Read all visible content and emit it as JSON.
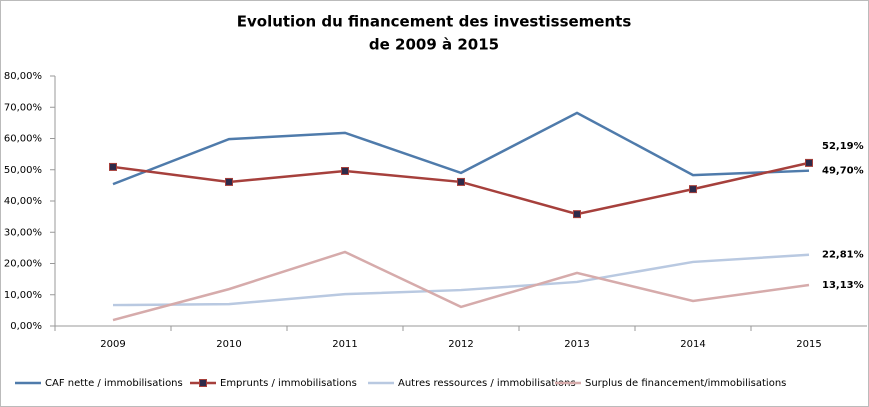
{
  "chart_data": {
    "type": "line",
    "title": [
      "Evolution du financement des investissements",
      "de 2009 à 2015"
    ],
    "categories": [
      "2009",
      "2010",
      "2011",
      "2012",
      "2013",
      "2014",
      "2015"
    ],
    "series": [
      {
        "name": "CAF nette / immobilisations",
        "color": "#4f7bab",
        "values": [
          45.4,
          59.8,
          61.8,
          49,
          68.2,
          48.3,
          49.7
        ],
        "value_labels": [
          null,
          null,
          null,
          null,
          null,
          null,
          "49,70%"
        ]
      },
      {
        "name": "Emprunts / immobilisations",
        "color": "#a6403c",
        "marker": "square",
        "values": [
          50.9,
          46.1,
          49.6,
          46.1,
          35.8,
          43.8,
          52.19
        ],
        "value_labels": [
          null,
          null,
          null,
          null,
          null,
          null,
          "52,19%"
        ]
      },
      {
        "name": "Autres ressources / immobilisations",
        "color": "#b9c9e1",
        "values": [
          6.7,
          7,
          10.2,
          11.5,
          14.1,
          20.5,
          22.81
        ],
        "value_labels": [
          null,
          null,
          null,
          null,
          null,
          null,
          "22,81%"
        ]
      },
      {
        "name": "Surplus de financement/immobilisations",
        "color": "#d6abab",
        "values": [
          1.9,
          11.8,
          23.7,
          6.1,
          17,
          8,
          13.13
        ],
        "value_labels": [
          null,
          null,
          null,
          null,
          null,
          null,
          "13,13%"
        ]
      }
    ],
    "ylim": [
      0,
      80
    ],
    "yticks": [
      {
        "value": 0,
        "label": "0,00%"
      },
      {
        "value": 10,
        "label": "10,00%"
      },
      {
        "value": 20,
        "label": "20,00%"
      },
      {
        "value": 30,
        "label": "30,00%"
      },
      {
        "value": 40,
        "label": "40,00%"
      },
      {
        "value": 50,
        "label": "50,00%"
      },
      {
        "value": 60,
        "label": "60,00%"
      },
      {
        "value": 70,
        "label": "70,00%"
      },
      {
        "value": 80,
        "label": "80,00%"
      }
    ],
    "grid": false,
    "legend": "bottom"
  }
}
